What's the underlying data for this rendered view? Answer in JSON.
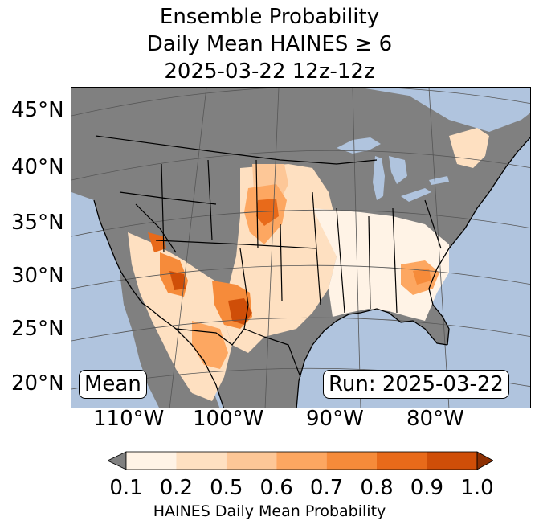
{
  "title": {
    "line1": "Ensemble Probability",
    "line2": "Daily Mean HAINES ≥ 6",
    "line3": "2025-03-22 12z-12z"
  },
  "map": {
    "lat_labels": [
      "45°N",
      "40°N",
      "35°N",
      "30°N",
      "25°N",
      "20°N"
    ],
    "lon_labels": [
      "110°W",
      "100°W",
      "90°W",
      "80°W"
    ],
    "stat_box": "Mean",
    "run_box": "Run: 2025-03-22",
    "colors": {
      "ocean": "#b0c4de",
      "masked_land": "#808080",
      "borders": "#000000"
    }
  },
  "colorbar": {
    "ticks": [
      "0.1",
      "0.2",
      "0.5",
      "0.6",
      "0.7",
      "0.8",
      "0.9",
      "1.0"
    ],
    "colors": [
      "#fff3e6",
      "#fee0c1",
      "#fdc797",
      "#fda761",
      "#f68b3a",
      "#e86a1a",
      "#cf4e08"
    ],
    "under_color": "#808080",
    "over_color": "#8c3003",
    "label": "HAINES Daily Mean Probability"
  }
}
